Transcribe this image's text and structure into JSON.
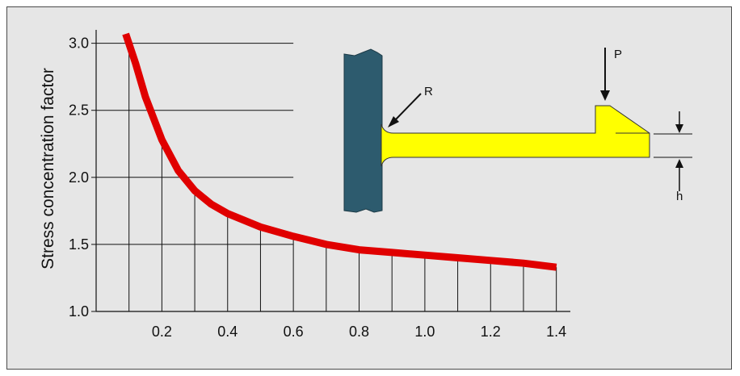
{
  "chart_data": {
    "type": "line",
    "title": "",
    "xlabel": "",
    "ylabel": "Stress concentration factor",
    "xlim": [
      0.0,
      1.45
    ],
    "ylim": [
      1.0,
      3.1
    ],
    "x_ticks": [
      0.2,
      0.4,
      0.6,
      0.8,
      1.0,
      1.2,
      1.4
    ],
    "x_tick_labels": [
      "0.2",
      "0.4",
      "0.6",
      "0.8",
      "1.0",
      "1.2",
      "1.4"
    ],
    "y_ticks": [
      1.0,
      1.5,
      2.0,
      2.5,
      3.0
    ],
    "y_tick_labels": [
      "1.0",
      "1.5",
      "2.0",
      "2.5",
      "3.0"
    ],
    "vertical_grid_x": [
      0.1,
      0.2,
      0.3,
      0.4,
      0.5,
      0.6,
      0.7,
      0.8,
      0.9,
      1.0,
      1.1,
      1.2,
      1.3,
      1.4
    ],
    "series": [
      {
        "color": "#e00000",
        "x": [
          0.09,
          0.12,
          0.15,
          0.2,
          0.25,
          0.3,
          0.35,
          0.4,
          0.5,
          0.6,
          0.7,
          0.8,
          0.9,
          1.0,
          1.1,
          1.2,
          1.3,
          1.4
        ],
        "y": [
          3.07,
          2.85,
          2.6,
          2.28,
          2.05,
          1.9,
          1.8,
          1.73,
          1.63,
          1.56,
          1.5,
          1.46,
          1.44,
          1.42,
          1.4,
          1.38,
          1.36,
          1.33
        ]
      }
    ]
  },
  "diagram": {
    "label_r": "R",
    "label_p": "P",
    "label_h": "h",
    "wall_color": "#2d5b6e",
    "beam_color": "#ffff00",
    "curve_color": "#e00000"
  }
}
